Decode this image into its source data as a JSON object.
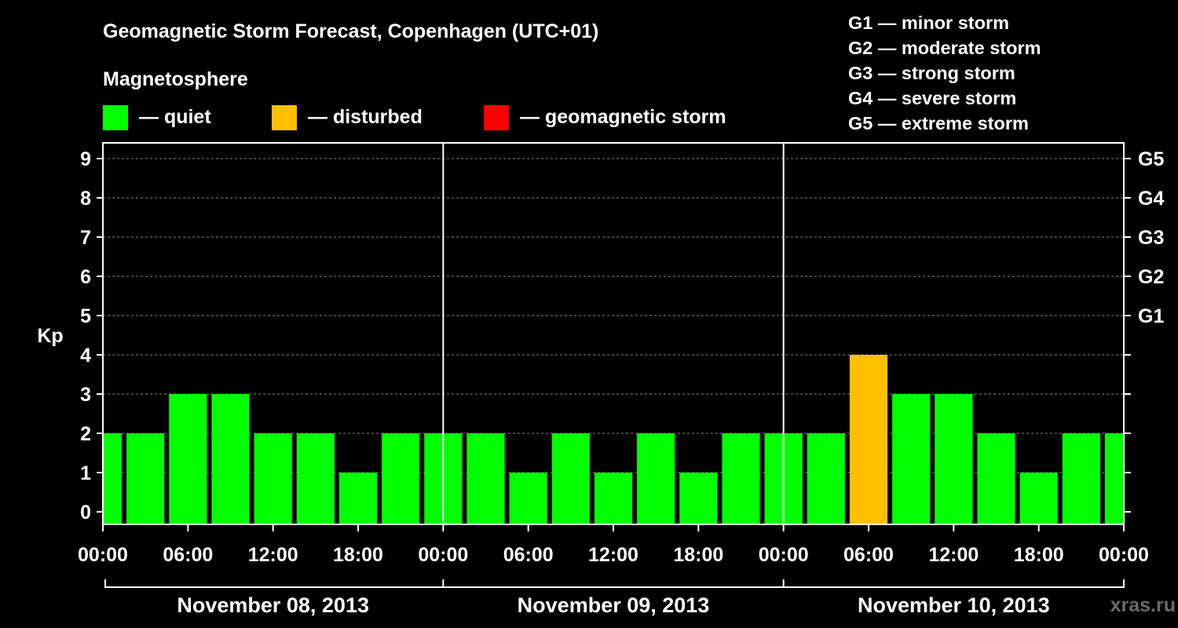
{
  "chart_data": {
    "type": "bar",
    "title": "Geomagnetic Storm Forecast, Copenhagen (UTC+01)",
    "legend_title": "Magnetosphere",
    "legend": [
      {
        "label": "— quiet",
        "color": "#00ff00"
      },
      {
        "label": "— disturbed",
        "color": "#ffc000"
      },
      {
        "label": "— geomagnetic storm",
        "color": "#ff0000"
      }
    ],
    "storm_scale": [
      "G1 — minor storm",
      "G2 — moderate storm",
      "G3 — strong storm",
      "G4 — severe storm",
      "G5 — extreme storm"
    ],
    "ylabel": "Kp",
    "ylim": [
      0,
      9
    ],
    "yticks": [
      "0",
      "1",
      "2",
      "3",
      "4",
      "5",
      "6",
      "7",
      "8",
      "9"
    ],
    "right_ticks": [
      {
        "kp": 5,
        "label": "G1"
      },
      {
        "kp": 6,
        "label": "G2"
      },
      {
        "kp": 7,
        "label": "G3"
      },
      {
        "kp": 8,
        "label": "G4"
      },
      {
        "kp": 9,
        "label": "G5"
      }
    ],
    "xtick_labels": [
      "00:00",
      "06:00",
      "12:00",
      "18:00",
      "00:00",
      "06:00",
      "12:00",
      "18:00",
      "00:00",
      "06:00",
      "12:00",
      "18:00",
      "00:00"
    ],
    "days": [
      "November 08, 2013",
      "November 09, 2013",
      "November 10, 2013"
    ],
    "start_time": "2013-11-08 00:00",
    "end_time": "2013-11-11 00:00",
    "bar_starts": [
      "2013-11-07 22:30",
      "2013-11-08 01:30",
      "2013-11-08 04:30",
      "2013-11-08 07:30",
      "2013-11-08 10:30",
      "2013-11-08 13:30",
      "2013-11-08 16:30",
      "2013-11-08 19:30",
      "2013-11-08 22:30",
      "2013-11-09 01:30",
      "2013-11-09 04:30",
      "2013-11-09 07:30",
      "2013-11-09 10:30",
      "2013-11-09 13:30",
      "2013-11-09 16:30",
      "2013-11-09 19:30",
      "2013-11-09 22:30",
      "2013-11-10 01:30",
      "2013-11-10 04:30",
      "2013-11-10 07:30",
      "2013-11-10 10:30",
      "2013-11-10 13:30",
      "2013-11-10 16:30",
      "2013-11-10 19:30",
      "2013-11-10 22:30"
    ],
    "bar_hours": 3,
    "values": [
      2,
      2,
      3,
      3,
      2,
      2,
      1,
      2,
      2,
      2,
      1,
      2,
      1,
      2,
      1,
      2,
      2,
      2,
      4,
      3,
      3,
      2,
      1,
      2,
      2
    ],
    "status": [
      "quiet",
      "quiet",
      "quiet",
      "quiet",
      "quiet",
      "quiet",
      "quiet",
      "quiet",
      "quiet",
      "quiet",
      "quiet",
      "quiet",
      "quiet",
      "quiet",
      "quiet",
      "quiet",
      "quiet",
      "quiet",
      "disturbed",
      "quiet",
      "quiet",
      "quiet",
      "quiet",
      "quiet",
      "quiet"
    ],
    "status_colors": {
      "quiet": "#00ff00",
      "disturbed": "#ffc000",
      "storm": "#ff0000"
    },
    "grid": true,
    "watermark": "xras.ru"
  }
}
